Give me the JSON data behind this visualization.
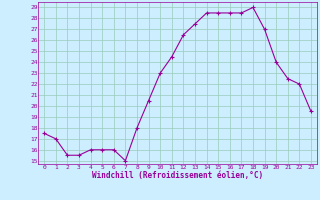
{
  "x": [
    0,
    1,
    2,
    3,
    4,
    5,
    6,
    7,
    8,
    9,
    10,
    11,
    12,
    13,
    14,
    15,
    16,
    17,
    18,
    19,
    20,
    21,
    22,
    23
  ],
  "y": [
    17.5,
    17.0,
    15.5,
    15.5,
    16.0,
    16.0,
    16.0,
    15.0,
    18.0,
    20.5,
    23.0,
    24.5,
    26.5,
    27.5,
    28.5,
    28.5,
    28.5,
    28.5,
    29.0,
    27.0,
    24.0,
    22.5,
    22.0,
    19.5
  ],
  "line_color": "#990099",
  "marker": "+",
  "bg_color": "#cceeff",
  "plot_bg_color": "#cceeff",
  "grid_color": "#99ccbb",
  "xlabel": "Windchill (Refroidissement éolien,°C)",
  "xlabel_color": "#990099",
  "tick_color": "#990099",
  "ylim_min": 15,
  "ylim_max": 29,
  "xlim_min": 0,
  "xlim_max": 23,
  "ytick_step": 1,
  "xtick_step": 1
}
